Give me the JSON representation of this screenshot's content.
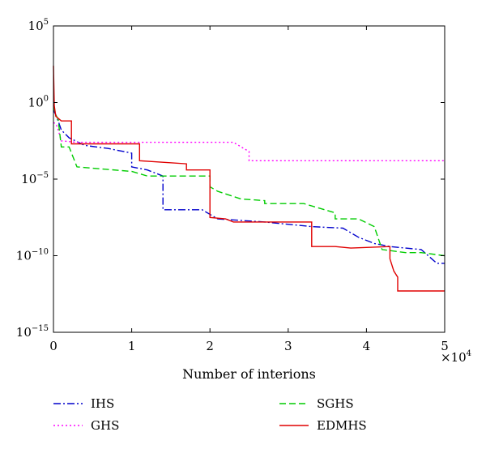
{
  "chart_data": {
    "type": "line",
    "title": "",
    "xlabel": "Number of interions",
    "ylabel": "",
    "x_multiplier_label": "×10",
    "x_multiplier_exp": "4",
    "xlim": [
      0,
      50000
    ],
    "ylim_log10": [
      -15,
      5
    ],
    "yscale": "log",
    "x_ticks": [
      {
        "value": 0,
        "label": "0"
      },
      {
        "value": 10000,
        "label": "1"
      },
      {
        "value": 20000,
        "label": "2"
      },
      {
        "value": 30000,
        "label": "3"
      },
      {
        "value": 40000,
        "label": "4"
      },
      {
        "value": 50000,
        "label": "5"
      }
    ],
    "y_ticks": [
      {
        "exp": 5,
        "base": "10",
        "sup": "5"
      },
      {
        "exp": 0,
        "base": "10",
        "sup": "0"
      },
      {
        "exp": -5,
        "base": "10",
        "sup": "−5"
      },
      {
        "exp": -10,
        "base": "10",
        "sup": "−10"
      },
      {
        "exp": -15,
        "base": "10",
        "sup": "−15"
      }
    ],
    "grid": false,
    "legend_position": "below",
    "series": [
      {
        "name": "IHS",
        "color": "#0000cc",
        "dash": "9,3,2,3",
        "points": [
          [
            0,
            -0.5
          ],
          [
            300,
            -0.8
          ],
          [
            600,
            -1.2
          ],
          [
            1000,
            -1.8
          ],
          [
            2000,
            -2.3
          ],
          [
            4000,
            -2.8
          ],
          [
            7000,
            -3.0
          ],
          [
            10000,
            -3.3
          ],
          [
            10000,
            -4.2
          ],
          [
            12000,
            -4.4
          ],
          [
            14000,
            -4.8
          ],
          [
            14000,
            -7.0
          ],
          [
            19000,
            -7.0
          ],
          [
            21000,
            -7.6
          ],
          [
            27000,
            -7.8
          ],
          [
            33000,
            -8.1
          ],
          [
            37000,
            -8.2
          ],
          [
            39000,
            -8.8
          ],
          [
            41000,
            -9.2
          ],
          [
            43000,
            -9.4
          ],
          [
            45000,
            -9.5
          ],
          [
            47000,
            -9.6
          ],
          [
            49000,
            -10.5
          ],
          [
            50000,
            -10.5
          ]
        ]
      },
      {
        "name": "GHS",
        "color": "#ff00ff",
        "dash": "2,3",
        "points": [
          [
            0,
            -1.3
          ],
          [
            300,
            -1.4
          ],
          [
            500,
            -1.6
          ],
          [
            1000,
            -2.5
          ],
          [
            3000,
            -2.6
          ],
          [
            10000,
            -2.6
          ],
          [
            15000,
            -2.6
          ],
          [
            20000,
            -2.6
          ],
          [
            23000,
            -2.6
          ],
          [
            24000,
            -2.9
          ],
          [
            25000,
            -3.2
          ],
          [
            25000,
            -3.8
          ],
          [
            30000,
            -3.8
          ],
          [
            40000,
            -3.8
          ],
          [
            50000,
            -3.8
          ]
        ]
      },
      {
        "name": "SGHS",
        "color": "#00cc00",
        "dash": "8,4",
        "points": [
          [
            0,
            -0.2
          ],
          [
            300,
            -0.8
          ],
          [
            600,
            -1.1
          ],
          [
            1000,
            -2.9
          ],
          [
            2000,
            -2.9
          ],
          [
            3000,
            -4.2
          ],
          [
            10000,
            -4.5
          ],
          [
            12000,
            -4.8
          ],
          [
            20000,
            -4.8
          ],
          [
            20000,
            -5.5
          ],
          [
            21000,
            -5.8
          ],
          [
            24000,
            -6.3
          ],
          [
            27000,
            -6.4
          ],
          [
            27000,
            -6.6
          ],
          [
            32000,
            -6.6
          ],
          [
            36000,
            -7.2
          ],
          [
            36000,
            -7.6
          ],
          [
            39000,
            -7.6
          ],
          [
            41000,
            -8.1
          ],
          [
            42000,
            -9.6
          ],
          [
            45000,
            -9.8
          ],
          [
            47000,
            -9.8
          ],
          [
            50000,
            -10.0
          ]
        ]
      },
      {
        "name": "EDMHS",
        "color": "#e00000",
        "dash": "",
        "points": [
          [
            0,
            2.4
          ],
          [
            100,
            -0.2
          ],
          [
            300,
            -0.9
          ],
          [
            1000,
            -1.2
          ],
          [
            2300,
            -1.2
          ],
          [
            2300,
            -2.7
          ],
          [
            11000,
            -2.7
          ],
          [
            11000,
            -3.8
          ],
          [
            17000,
            -4.0
          ],
          [
            17000,
            -4.4
          ],
          [
            20000,
            -4.4
          ],
          [
            20000,
            -7.5
          ],
          [
            22000,
            -7.6
          ],
          [
            23000,
            -7.8
          ],
          [
            31000,
            -7.8
          ],
          [
            33000,
            -7.8
          ],
          [
            33000,
            -9.4
          ],
          [
            36000,
            -9.4
          ],
          [
            38000,
            -9.5
          ],
          [
            43000,
            -9.4
          ],
          [
            43000,
            -10.2
          ],
          [
            43500,
            -11.0
          ],
          [
            44000,
            -11.4
          ],
          [
            44000,
            -12.3
          ],
          [
            48000,
            -12.3
          ],
          [
            50000,
            -12.3
          ]
        ]
      }
    ]
  }
}
